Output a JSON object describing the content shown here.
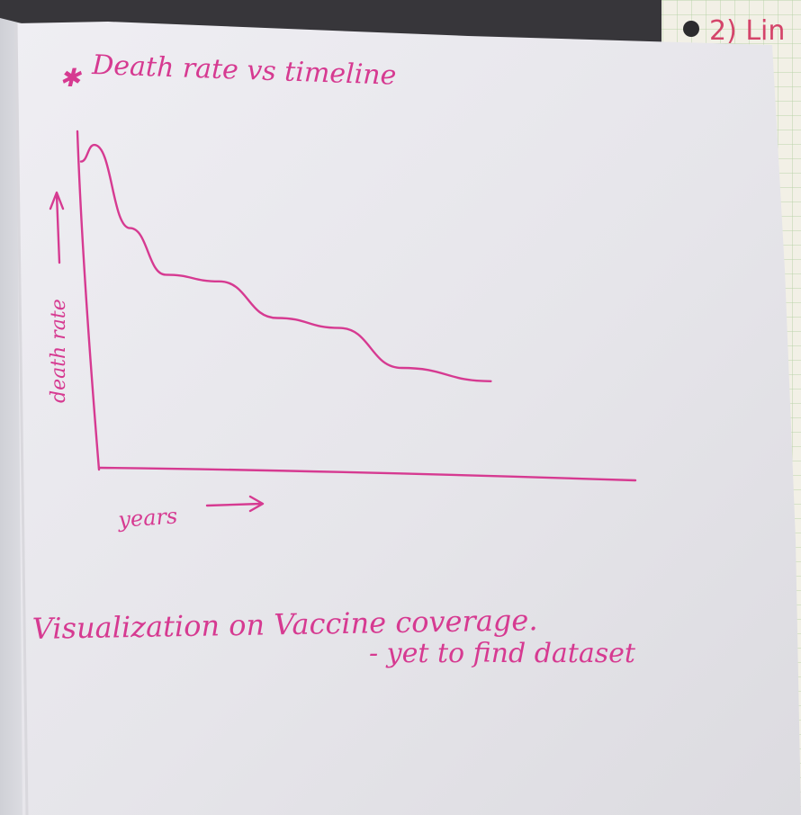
{
  "photo": {
    "description_free": true,
    "ink_color": "#d63a91",
    "paper_color": "#e9e8ed"
  },
  "sketch": {
    "heading": "Death rate vs timeline",
    "y_axis_label": "death rate",
    "x_axis_label": "years",
    "trend_line_points": [
      [
        0.0,
        0.92
      ],
      [
        0.03,
        0.97
      ],
      [
        0.11,
        0.72
      ],
      [
        0.19,
        0.58
      ],
      [
        0.31,
        0.56
      ],
      [
        0.44,
        0.45
      ],
      [
        0.58,
        0.42
      ],
      [
        0.72,
        0.3
      ],
      [
        0.92,
        0.26
      ]
    ]
  },
  "notes": {
    "line1": "Visualization on Vaccine coverage.",
    "line2": "- yet to find dataset"
  },
  "side_page": {
    "text": "2) Lin"
  }
}
